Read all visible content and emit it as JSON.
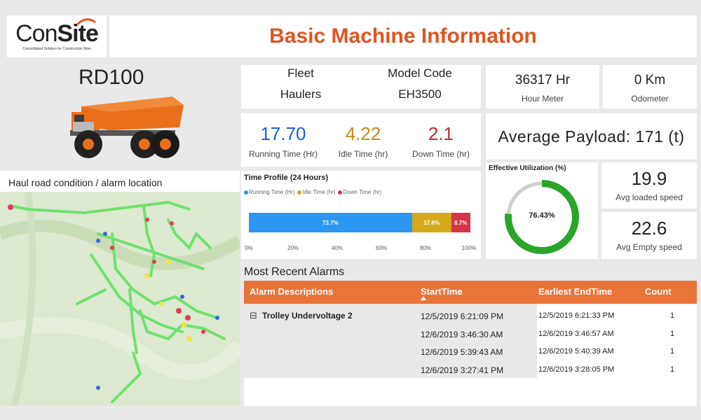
{
  "logo": {
    "prefix": "Con",
    "suffix": "Site",
    "tagline": "Consolidated Solution for Construction Sites"
  },
  "header": {
    "title": "Basic Machine Information"
  },
  "machine": {
    "id": "RD100"
  },
  "fleet": {
    "fleet_label": "Fleet",
    "fleet_value": "Haulers",
    "model_label": "Model Code",
    "model_value": "EH3500"
  },
  "hour_meter": {
    "value": "36317 Hr",
    "label": "Hour Meter"
  },
  "odometer": {
    "value": "0 Km",
    "label": "Odometer"
  },
  "times": {
    "running": {
      "value": "17.70",
      "label": "Running Time (Hr)",
      "color": "#1f5fd1"
    },
    "idle": {
      "value": "4.22",
      "label": "Idle Time (hr)",
      "color": "#c98a14"
    },
    "down": {
      "value": "2.1",
      "label": "Down Time (hr)",
      "color": "#c6242e"
    }
  },
  "payload": {
    "text": "Average Payload: 171 (t)"
  },
  "map": {
    "title": "Haul road condition / alarm location"
  },
  "time_profile": {
    "title": "Time Profile (24 Hours)",
    "legend": [
      "Running Time (Hr)",
      "Idle Time (hr)",
      "Down Time (hr)"
    ],
    "colors": [
      "#2c96f0",
      "#d5a91a",
      "#d63447"
    ],
    "segments": [
      73.7,
      17.6,
      8.7
    ],
    "segment_labels": [
      "73.7%",
      "17.6%",
      "8.7%"
    ],
    "ticks": [
      "0%",
      "20%",
      "40%",
      "60%",
      "80%",
      "100%"
    ]
  },
  "utilization": {
    "title": "Effective Utilization (%)",
    "value": 76.43,
    "label": "76.43%",
    "color": "#2aa52a",
    "track": "#cfcfcf"
  },
  "speeds": {
    "loaded": {
      "value": "19.9",
      "label": "Avg loaded speed"
    },
    "empty": {
      "value": "22.6",
      "label": "Avg Empty speed"
    }
  },
  "alarms": {
    "title": "Most Recent Alarms",
    "headers": {
      "desc": "Alarm Descriptions",
      "start": "StartTime",
      "end": "Earliest EndTime",
      "count": "Count"
    },
    "group": "Trolley Undervoltage 2",
    "expand_symbol": "⊟",
    "rows": [
      {
        "start": "12/5/2019 6:21:09 PM",
        "end": "12/5/2019 6:21:33 PM",
        "count": "1"
      },
      {
        "start": "12/6/2019 3:46:30 AM",
        "end": "12/6/2019 3:46:57 AM",
        "count": "1"
      },
      {
        "start": "12/6/2019 5:39:43 AM",
        "end": "12/6/2019 5:40:39 AM",
        "count": "1"
      },
      {
        "start": "12/6/2019 3:27:41 PM",
        "end": "12/6/2019 3:28:05 PM",
        "count": "1"
      }
    ]
  }
}
